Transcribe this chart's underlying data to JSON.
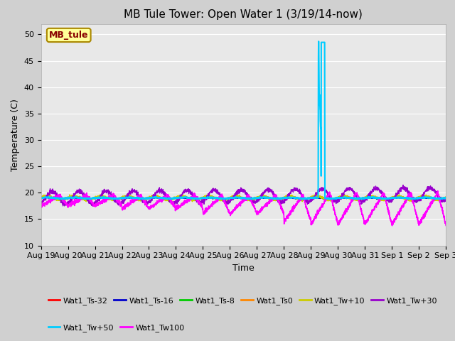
{
  "title": "MB Tule Tower: Open Water 1 (3/19/14-now)",
  "xlabel": "Time",
  "ylabel": "Temperature (C)",
  "ylim": [
    10,
    52
  ],
  "xlim": [
    0,
    15.0
  ],
  "fig_bg_color": "#d0d0d0",
  "plot_bg_color": "#e8e8e8",
  "legend_label": "MB_tule",
  "series": {
    "Wat1_Ts-32": {
      "color": "#ff0000",
      "lw": 1.0
    },
    "Wat1_Ts-16": {
      "color": "#0000cc",
      "lw": 1.0
    },
    "Wat1_Ts-8": {
      "color": "#00cc00",
      "lw": 1.0
    },
    "Wat1_Ts0": {
      "color": "#ff8800",
      "lw": 1.0
    },
    "Wat1_Tw+10": {
      "color": "#cccc00",
      "lw": 1.0
    },
    "Wat1_Tw+30": {
      "color": "#9900cc",
      "lw": 1.0
    },
    "Wat1_Tw+50": {
      "color": "#00ccff",
      "lw": 1.5
    },
    "Wat1_Tw100": {
      "color": "#ff00ff",
      "lw": 1.2
    }
  },
  "yticks": [
    10,
    15,
    20,
    25,
    30,
    35,
    40,
    45,
    50
  ],
  "xtick_labels": [
    "Aug 19",
    "Aug 20",
    "Aug 21",
    "Aug 22",
    "Aug 23",
    "Aug 24",
    "Aug 25",
    "Aug 26",
    "Aug 27",
    "Aug 28",
    "Aug 29",
    "Aug 30",
    "Aug 31",
    "Sep 1",
    "Sep 2",
    "Sep 3"
  ],
  "n_days": 15,
  "grid_color": "white",
  "grid_lw": 0.8,
  "title_fontsize": 11,
  "label_fontsize": 9,
  "tick_fontsize": 8,
  "legend_fontsize": 8
}
